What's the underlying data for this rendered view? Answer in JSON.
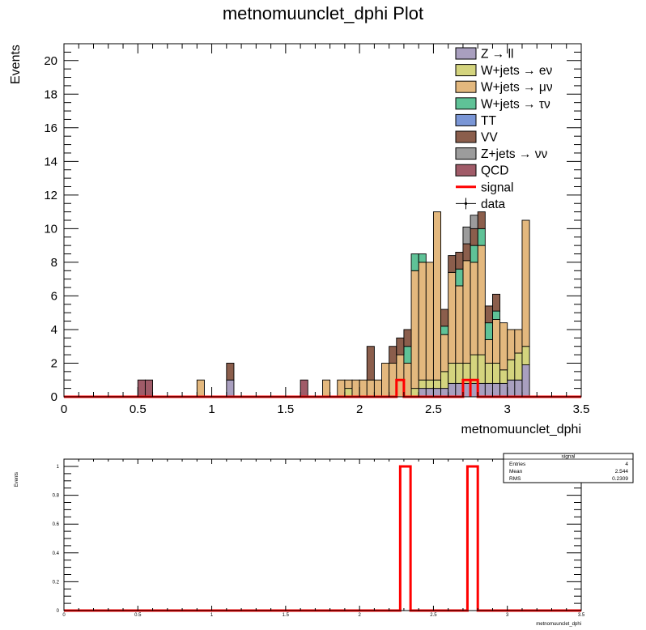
{
  "chart_data": [
    {
      "type": "bar",
      "stacked": true,
      "title": "metnomuunclet_dphi Plot",
      "xlabel": "metnomuunclet_dphi",
      "ylabel": "Events",
      "xlim": [
        0,
        3.5
      ],
      "ylim": [
        0,
        21
      ],
      "bin_width": 0.05,
      "x_ticks": [
        "0",
        "0.5",
        "1",
        "1.5",
        "2",
        "2.5",
        "3",
        "3.5"
      ],
      "y_ticks": [
        "0",
        "2",
        "4",
        "6",
        "8",
        "10",
        "12",
        "14",
        "16",
        "18",
        "20"
      ],
      "legend_position": "top-right",
      "legend": [
        {
          "label": "Z → ll",
          "kind": "fill",
          "color": "#a99fbf"
        },
        {
          "label": "W+jets → eν",
          "kind": "fill",
          "color": "#d4d47e"
        },
        {
          "label": "W+jets → μν",
          "kind": "fill",
          "color": "#e3b87e"
        },
        {
          "label": "W+jets → τν",
          "kind": "fill",
          "color": "#5fc297"
        },
        {
          "label": "TT",
          "kind": "fill",
          "color": "#7a96d6"
        },
        {
          "label": "VV",
          "kind": "fill",
          "color": "#8b5e4c"
        },
        {
          "label": "Z+jets → νν",
          "kind": "fill",
          "color": "#9c9c9c"
        },
        {
          "label": "QCD",
          "kind": "fill",
          "color": "#a05b68"
        },
        {
          "label": "signal",
          "kind": "line",
          "color": "#ff0000"
        },
        {
          "label": "data",
          "kind": "marker",
          "color": "#000000"
        }
      ],
      "series": [
        {
          "name": "Z → ll",
          "color": "#a99fbf",
          "bins": [
            {
              "x": 1.1,
              "y": 1
            },
            {
              "x": 2.4,
              "y": 0.5
            },
            {
              "x": 2.45,
              "y": 0.5
            },
            {
              "x": 2.5,
              "y": 0.5
            },
            {
              "x": 2.55,
              "y": 0.5
            },
            {
              "x": 2.6,
              "y": 0.8
            },
            {
              "x": 2.65,
              "y": 0.8
            },
            {
              "x": 2.7,
              "y": 0.8
            },
            {
              "x": 2.75,
              "y": 0.8
            },
            {
              "x": 2.8,
              "y": 0.8
            },
            {
              "x": 2.85,
              "y": 0.8
            },
            {
              "x": 2.9,
              "y": 0.8
            },
            {
              "x": 2.95,
              "y": 0.8
            },
            {
              "x": 3.0,
              "y": 1
            },
            {
              "x": 3.05,
              "y": 1
            },
            {
              "x": 3.1,
              "y": 1.9
            }
          ]
        },
        {
          "name": "W+jets → eν",
          "color": "#d4d47e",
          "bins": [
            {
              "x": 1.9,
              "y": 0.5
            },
            {
              "x": 2.35,
              "y": 0.5
            },
            {
              "x": 2.4,
              "y": 0.5
            },
            {
              "x": 2.45,
              "y": 0.5
            },
            {
              "x": 2.5,
              "y": 0.5
            },
            {
              "x": 2.55,
              "y": 1
            },
            {
              "x": 2.6,
              "y": 1.2
            },
            {
              "x": 2.65,
              "y": 1.2
            },
            {
              "x": 2.7,
              "y": 1.2
            },
            {
              "x": 2.75,
              "y": 1.7
            },
            {
              "x": 2.8,
              "y": 1.7
            },
            {
              "x": 2.85,
              "y": 1.2
            },
            {
              "x": 2.9,
              "y": 1.2
            },
            {
              "x": 2.95,
              "y": 0.8
            },
            {
              "x": 3.0,
              "y": 1.2
            },
            {
              "x": 3.05,
              "y": 1.6
            },
            {
              "x": 3.1,
              "y": 1.1
            }
          ]
        },
        {
          "name": "W+jets → μν",
          "color": "#e3b87e",
          "bins": [
            {
              "x": 0.9,
              "y": 1
            },
            {
              "x": 1.75,
              "y": 1
            },
            {
              "x": 1.85,
              "y": 1
            },
            {
              "x": 1.9,
              "y": 0.5
            },
            {
              "x": 1.95,
              "y": 1
            },
            {
              "x": 2.0,
              "y": 1
            },
            {
              "x": 2.05,
              "y": 1
            },
            {
              "x": 2.1,
              "y": 1
            },
            {
              "x": 2.15,
              "y": 2
            },
            {
              "x": 2.2,
              "y": 2
            },
            {
              "x": 2.25,
              "y": 2.5
            },
            {
              "x": 2.3,
              "y": 2
            },
            {
              "x": 2.35,
              "y": 7
            },
            {
              "x": 2.4,
              "y": 7
            },
            {
              "x": 2.45,
              "y": 7
            },
            {
              "x": 2.5,
              "y": 10
            },
            {
              "x": 2.55,
              "y": 2.2
            },
            {
              "x": 2.6,
              "y": 5.4
            },
            {
              "x": 2.65,
              "y": 4.6
            },
            {
              "x": 2.7,
              "y": 6.1
            },
            {
              "x": 2.75,
              "y": 5.5
            },
            {
              "x": 2.8,
              "y": 6.5
            },
            {
              "x": 2.85,
              "y": 1.4
            },
            {
              "x": 2.9,
              "y": 2.6
            },
            {
              "x": 2.95,
              "y": 2.8
            },
            {
              "x": 3.0,
              "y": 1.8
            },
            {
              "x": 3.05,
              "y": 1.4
            },
            {
              "x": 3.1,
              "y": 7.5
            }
          ]
        },
        {
          "name": "W+jets → τν",
          "color": "#5fc297",
          "bins": [
            {
              "x": 2.3,
              "y": 1
            },
            {
              "x": 2.35,
              "y": 1
            },
            {
              "x": 2.4,
              "y": 0.5
            },
            {
              "x": 2.55,
              "y": 0.5
            },
            {
              "x": 2.65,
              "y": 1
            },
            {
              "x": 2.75,
              "y": 1
            },
            {
              "x": 2.8,
              "y": 1
            },
            {
              "x": 2.85,
              "y": 1
            },
            {
              "x": 2.9,
              "y": 0.5
            }
          ]
        },
        {
          "name": "TT",
          "color": "#7a96d6",
          "bins": []
        },
        {
          "name": "VV",
          "color": "#8b5e4c",
          "bins": [
            {
              "x": 1.1,
              "y": 1
            },
            {
              "x": 2.05,
              "y": 2
            },
            {
              "x": 2.2,
              "y": 1
            },
            {
              "x": 2.25,
              "y": 1
            },
            {
              "x": 2.3,
              "y": 1
            },
            {
              "x": 2.55,
              "y": 1
            },
            {
              "x": 2.6,
              "y": 1
            },
            {
              "x": 2.65,
              "y": 1
            },
            {
              "x": 2.7,
              "y": 1
            },
            {
              "x": 2.75,
              "y": 1
            },
            {
              "x": 2.8,
              "y": 1
            },
            {
              "x": 2.85,
              "y": 1
            },
            {
              "x": 2.9,
              "y": 1
            }
          ]
        },
        {
          "name": "Z+jets → νν",
          "color": "#9c9c9c",
          "bins": [
            {
              "x": 2.7,
              "y": 1
            },
            {
              "x": 2.75,
              "y": 0.8
            }
          ]
        },
        {
          "name": "QCD",
          "color": "#a05b68",
          "bins": [
            {
              "x": 0.5,
              "y": 1
            },
            {
              "x": 0.55,
              "y": 1
            },
            {
              "x": 1.6,
              "y": 1
            }
          ]
        }
      ],
      "signal": {
        "name": "signal",
        "color": "#ff0000",
        "bins": [
          {
            "x": 2.25,
            "y": 1
          },
          {
            "x": 2.3,
            "y": 0
          },
          {
            "x": 2.7,
            "y": 1
          },
          {
            "x": 2.75,
            "y": 1
          }
        ]
      },
      "data_points": []
    },
    {
      "type": "line",
      "title": "",
      "xlabel": "metnomuunclet_dphi",
      "ylabel": "Events",
      "xlim": [
        0,
        3.5
      ],
      "ylim": [
        0,
        1.0
      ],
      "x_ticks": [
        "0",
        "0.5",
        "1",
        "1.5",
        "2",
        "2.5",
        "3",
        "3.5"
      ],
      "y_ticks": [
        "0",
        "0.2",
        "0.4",
        "0.6",
        "0.8",
        "1"
      ],
      "series": [
        {
          "name": "signal",
          "color": "#ff0000",
          "bins": [
            {
              "x": 2.275,
              "w": 0.07,
              "y": 1
            },
            {
              "x": 2.73,
              "w": 0.07,
              "y": 1
            }
          ]
        }
      ],
      "stats_box": {
        "title": "signal",
        "rows": [
          {
            "label": "Entries",
            "value": "4"
          },
          {
            "label": "Mean",
            "value": "2.544"
          },
          {
            "label": "RMS",
            "value": "0.2309"
          }
        ]
      }
    }
  ]
}
